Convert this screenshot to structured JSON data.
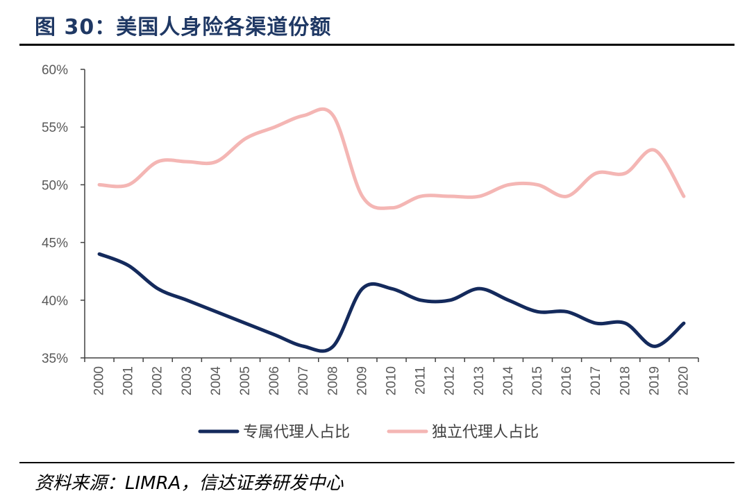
{
  "header": {
    "title": "图 30：美国人身险各渠道份额"
  },
  "footer": {
    "source": "资料来源：LIMRA，信达证券研发中心"
  },
  "colors": {
    "series_dark": "#142a5c",
    "series_light": "#f4b6b4",
    "axis": "#404040",
    "title": "#1f3864"
  },
  "chart_data": {
    "type": "line",
    "x": [
      "2000",
      "2001",
      "2002",
      "2003",
      "2004",
      "2005",
      "2006",
      "2007",
      "2008",
      "2009",
      "2010",
      "2011",
      "2012",
      "2013",
      "2014",
      "2015",
      "2016",
      "2017",
      "2018",
      "2019",
      "2020"
    ],
    "series": [
      {
        "name": "专属代理人占比",
        "color": "#142a5c",
        "values": [
          44,
          43,
          41,
          40,
          39,
          38,
          37,
          36,
          36,
          41,
          41,
          40,
          40,
          41,
          40,
          39,
          39,
          38,
          38,
          36,
          38
        ]
      },
      {
        "name": "独立代理人占比",
        "color": "#f4b6b4",
        "values": [
          50,
          50,
          52,
          52,
          52,
          54,
          55,
          56,
          56,
          49,
          48,
          49,
          49,
          49,
          50,
          50,
          49,
          51,
          51,
          53,
          49
        ]
      }
    ],
    "ylim": [
      35,
      60
    ],
    "yticks": [
      "35%",
      "40%",
      "45%",
      "50%",
      "55%",
      "60%"
    ],
    "ytick_values": [
      35,
      40,
      45,
      50,
      55,
      60
    ],
    "xlabel": "",
    "ylabel": "",
    "grid": false,
    "legend_position": "bottom"
  }
}
